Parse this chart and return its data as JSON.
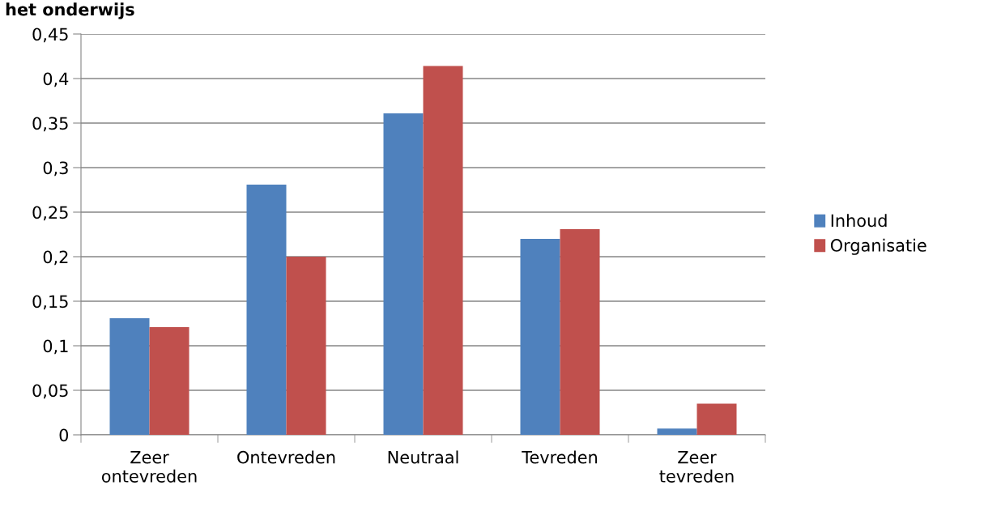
{
  "chart_data": {
    "type": "bar",
    "title": "het onderwijs",
    "categories": [
      "Zeer\nontevreden",
      "Ontevreden",
      "Neutraal",
      "Tevreden",
      "Zeer\ntevreden"
    ],
    "series": [
      {
        "name": "Inhoud",
        "color": "#4f81bd",
        "values": [
          0.131,
          0.281,
          0.361,
          0.22,
          0.007
        ]
      },
      {
        "name": "Organisatie",
        "color": "#c0504d",
        "values": [
          0.121,
          0.2,
          0.414,
          0.231,
          0.035
        ]
      }
    ],
    "ylim": [
      0,
      0.45
    ],
    "yticks": [
      {
        "value": 0,
        "label": "0"
      },
      {
        "value": 0.05,
        "label": "0,05"
      },
      {
        "value": 0.1,
        "label": "0,1"
      },
      {
        "value": 0.15,
        "label": "0,15"
      },
      {
        "value": 0.2,
        "label": "0,2"
      },
      {
        "value": 0.25,
        "label": "0,25"
      },
      {
        "value": 0.3,
        "label": "0,3"
      },
      {
        "value": 0.35,
        "label": "0,35"
      },
      {
        "value": 0.4,
        "label": "0,4"
      },
      {
        "value": 0.45,
        "label": "0,45"
      }
    ],
    "grid": "y",
    "legend": "right"
  }
}
